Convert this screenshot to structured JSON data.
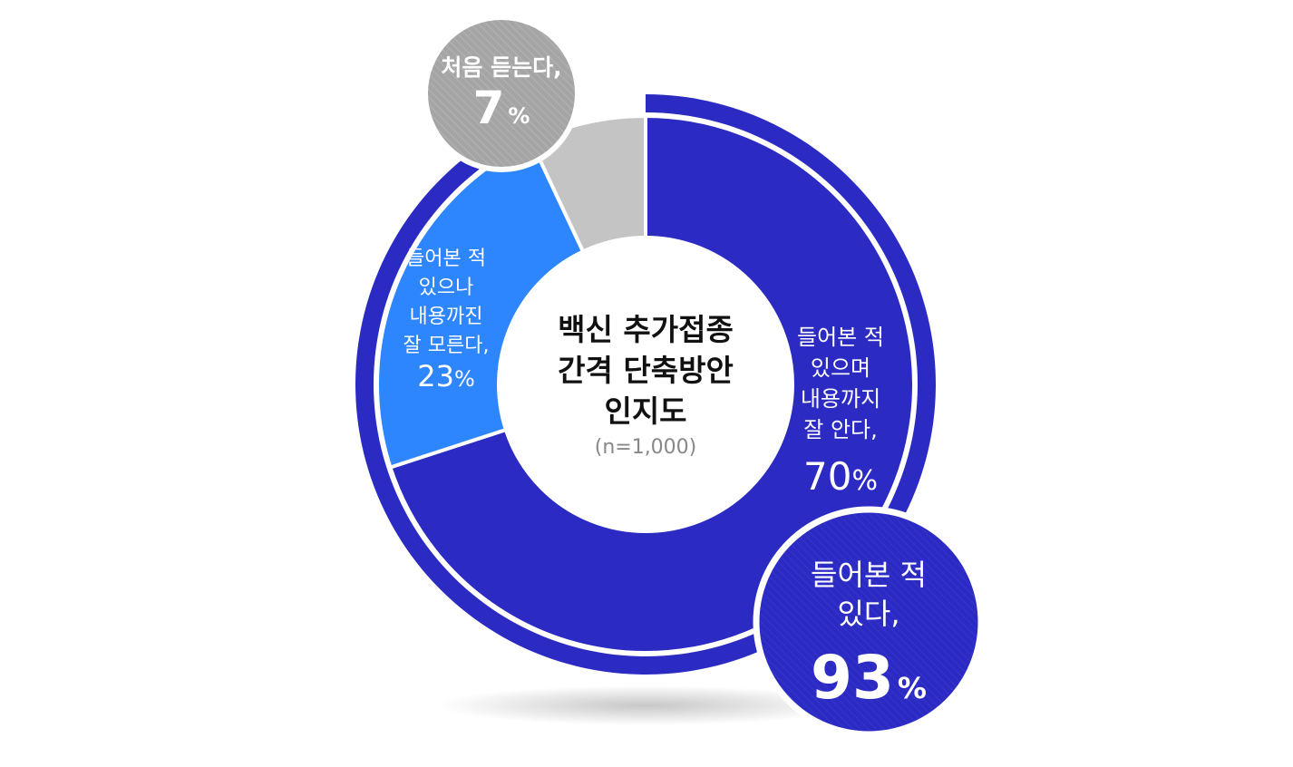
{
  "chart_data": {
    "type": "pie",
    "title_lines": [
      "백신 추가접종",
      "간격 단축방안",
      "인지도"
    ],
    "subtitle": "(n=1,000)",
    "categories": [
      "들어본 적 있으며 내용까지 잘 안다",
      "들어본 적 있으나 내용까진 잘 모른다",
      "처음 듣는다"
    ],
    "values": [
      70,
      23,
      7
    ],
    "unit": "%",
    "colors": [
      "#2b2bc4",
      "#2e86ff",
      "#c4c4c4"
    ],
    "outer_ring": {
      "value": 93,
      "color": "#2b2bc4"
    }
  },
  "labels": {
    "known_well": {
      "lines": [
        "들어본 적",
        "있으며",
        "내용까지",
        "잘 안다,"
      ],
      "number": "70",
      "unit": "%"
    },
    "known_not_content": {
      "lines": [
        "들어본 적",
        "있으나",
        "내용까진",
        "잘 모른다,"
      ],
      "number": "23",
      "unit": "%"
    },
    "first_time": {
      "lines": [
        "처음 듣는다,"
      ],
      "number": "7",
      "unit": "%"
    },
    "heard_total": {
      "lines": [
        "들어본 적",
        "있다,"
      ],
      "number": "93",
      "unit": "%"
    }
  }
}
